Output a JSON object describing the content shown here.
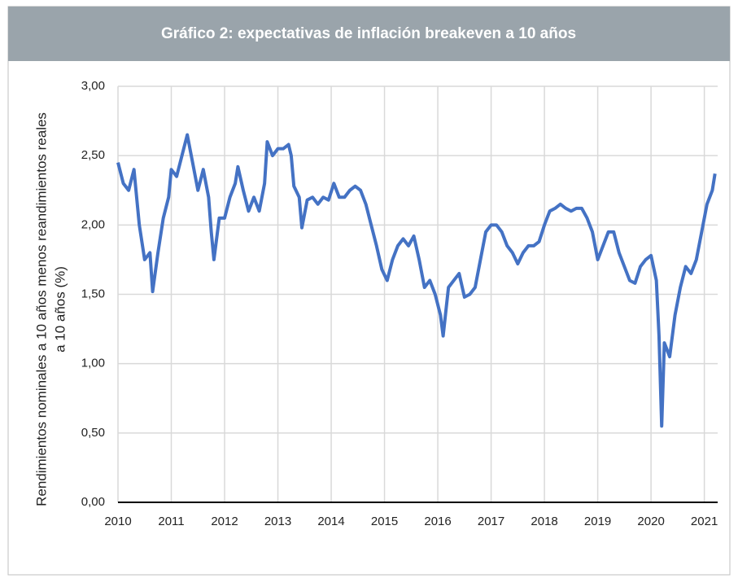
{
  "chart_data": {
    "type": "line",
    "title": "Gráfico 2: expectativas de inflación breakeven a 10 años",
    "ylabel": [
      "Rendimientos nominales a 10 años menos reandimientos reales",
      "a 10 años (%)"
    ],
    "x": [
      2010.0,
      2010.1,
      2010.2,
      2010.3,
      2010.35,
      2010.4,
      2010.5,
      2010.6,
      2010.65,
      2010.75,
      2010.85,
      2010.95,
      2011.0,
      2011.1,
      2011.2,
      2011.3,
      2011.4,
      2011.5,
      2011.6,
      2011.7,
      2011.75,
      2011.8,
      2011.9,
      2012.0,
      2012.1,
      2012.2,
      2012.25,
      2012.35,
      2012.45,
      2012.55,
      2012.65,
      2012.75,
      2012.8,
      2012.9,
      2013.0,
      2013.1,
      2013.2,
      2013.25,
      2013.3,
      2013.4,
      2013.45,
      2013.55,
      2013.65,
      2013.75,
      2013.85,
      2013.95,
      2014.05,
      2014.15,
      2014.25,
      2014.35,
      2014.45,
      2014.55,
      2014.65,
      2014.75,
      2014.85,
      2014.95,
      2015.05,
      2015.15,
      2015.25,
      2015.35,
      2015.45,
      2015.55,
      2015.65,
      2015.75,
      2015.85,
      2015.95,
      2016.05,
      2016.1,
      2016.2,
      2016.3,
      2016.4,
      2016.5,
      2016.6,
      2016.7,
      2016.8,
      2016.9,
      2017.0,
      2017.1,
      2017.2,
      2017.3,
      2017.4,
      2017.5,
      2017.6,
      2017.7,
      2017.8,
      2017.9,
      2018.0,
      2018.1,
      2018.2,
      2018.3,
      2018.4,
      2018.5,
      2018.6,
      2018.7,
      2018.8,
      2018.9,
      2019.0,
      2019.1,
      2019.2,
      2019.3,
      2019.4,
      2019.5,
      2019.6,
      2019.7,
      2019.8,
      2019.9,
      2020.0,
      2020.1,
      2020.15,
      2020.2,
      2020.25,
      2020.35,
      2020.45,
      2020.55,
      2020.65,
      2020.75,
      2020.85,
      2020.95,
      2021.05,
      2021.15,
      2021.2
    ],
    "series": [
      {
        "color": "#4472c4",
        "values": [
          2.45,
          2.3,
          2.25,
          2.4,
          2.2,
          2.0,
          1.75,
          1.8,
          1.52,
          1.8,
          2.05,
          2.2,
          2.4,
          2.35,
          2.5,
          2.65,
          2.45,
          2.25,
          2.4,
          2.2,
          1.95,
          1.75,
          2.05,
          2.05,
          2.2,
          2.3,
          2.42,
          2.25,
          2.1,
          2.2,
          2.1,
          2.3,
          2.6,
          2.5,
          2.55,
          2.55,
          2.58,
          2.5,
          2.28,
          2.2,
          1.98,
          2.18,
          2.2,
          2.15,
          2.2,
          2.18,
          2.3,
          2.2,
          2.2,
          2.25,
          2.28,
          2.25,
          2.15,
          2.0,
          1.85,
          1.68,
          1.6,
          1.75,
          1.85,
          1.9,
          1.85,
          1.92,
          1.75,
          1.55,
          1.6,
          1.5,
          1.35,
          1.2,
          1.55,
          1.6,
          1.65,
          1.48,
          1.5,
          1.55,
          1.75,
          1.95,
          2.0,
          2.0,
          1.95,
          1.85,
          1.8,
          1.72,
          1.8,
          1.85,
          1.85,
          1.88,
          2.0,
          2.1,
          2.12,
          2.15,
          2.12,
          2.1,
          2.12,
          2.12,
          2.05,
          1.95,
          1.75,
          1.85,
          1.95,
          1.95,
          1.8,
          1.7,
          1.6,
          1.58,
          1.7,
          1.75,
          1.78,
          1.6,
          1.2,
          0.55,
          1.15,
          1.05,
          1.35,
          1.55,
          1.7,
          1.65,
          1.75,
          1.95,
          2.15,
          2.25,
          2.37
        ]
      }
    ],
    "xlim": [
      2010,
      2021.25
    ],
    "xticks": [
      2010,
      2011,
      2012,
      2013,
      2014,
      2015,
      2016,
      2017,
      2018,
      2019,
      2020,
      2021
    ],
    "ylim": [
      0,
      3
    ],
    "yticks": [
      {
        "value": 0,
        "label": "0,00"
      },
      {
        "value": 0.5,
        "label": "0,50"
      },
      {
        "value": 1,
        "label": "1,00"
      },
      {
        "value": 1.5,
        "label": "1,50"
      },
      {
        "value": 2,
        "label": "2,00"
      },
      {
        "value": 2.5,
        "label": "2,50"
      },
      {
        "value": 3,
        "label": "3,00"
      }
    ],
    "grid": true
  }
}
